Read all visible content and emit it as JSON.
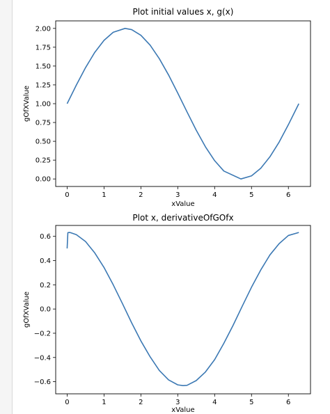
{
  "chart_data": [
    {
      "type": "line",
      "title": "Plot initial values x, g(x)",
      "xlabel": "xValue",
      "ylabel": "gOfXValue",
      "xlim": [
        -0.31,
        6.6
      ],
      "ylim": [
        -0.1,
        2.1
      ],
      "x_ticks": [
        "0",
        "1",
        "2",
        "3",
        "4",
        "5",
        "6"
      ],
      "y_ticks": [
        "0.00",
        "0.25",
        "0.50",
        "0.75",
        "1.00",
        "1.25",
        "1.50",
        "1.75",
        "2.00"
      ],
      "color": "#3b78b3",
      "series": [
        {
          "x": [
            0,
            0.25,
            0.5,
            0.75,
            1.0,
            1.25,
            1.5708,
            1.75,
            2.0,
            2.25,
            2.5,
            2.75,
            3.0,
            3.25,
            3.5,
            3.75,
            4.0,
            4.25,
            4.7124,
            5.0,
            5.25,
            5.5,
            5.75,
            6.0,
            6.2832
          ],
          "y": [
            1.0,
            1.247,
            1.479,
            1.682,
            1.841,
            1.949,
            2.0,
            1.984,
            1.909,
            1.778,
            1.598,
            1.382,
            1.141,
            0.892,
            0.649,
            0.428,
            0.243,
            0.105,
            0.0,
            0.041,
            0.141,
            0.295,
            0.49,
            0.721,
            1.0
          ]
        }
      ]
    },
    {
      "type": "line",
      "title": "Plot x, derivativeOfGOfx",
      "xlabel": "xValue",
      "ylabel": "gOfXValue",
      "xlim": [
        -0.31,
        6.6
      ],
      "ylim": [
        -0.7,
        0.69
      ],
      "x_ticks": [
        "0",
        "1",
        "2",
        "3",
        "4",
        "5",
        "6"
      ],
      "y_ticks": [
        "−0.6",
        "−0.4",
        "−0.2",
        "0.0",
        "0.2",
        "0.4",
        "0.6"
      ],
      "color": "#3b78b3",
      "series": [
        {
          "x": [
            0,
            0.02,
            0.05,
            0.1,
            0.25,
            0.5,
            0.75,
            1.0,
            1.25,
            1.5,
            1.75,
            2.0,
            2.25,
            2.5,
            2.75,
            3.0,
            3.1416,
            3.25,
            3.5,
            3.75,
            4.0,
            4.25,
            4.5,
            4.75,
            5.0,
            5.25,
            5.5,
            5.75,
            6.0,
            6.2832
          ],
          "y": [
            0.5,
            0.63,
            0.632,
            0.63,
            0.614,
            0.557,
            0.463,
            0.343,
            0.2,
            0.045,
            -0.114,
            -0.263,
            -0.394,
            -0.507,
            -0.585,
            -0.626,
            -0.632,
            -0.63,
            -0.591,
            -0.52,
            -0.418,
            -0.283,
            -0.135,
            0.024,
            0.18,
            0.322,
            0.447,
            0.54,
            0.607,
            0.632
          ]
        }
      ]
    }
  ]
}
